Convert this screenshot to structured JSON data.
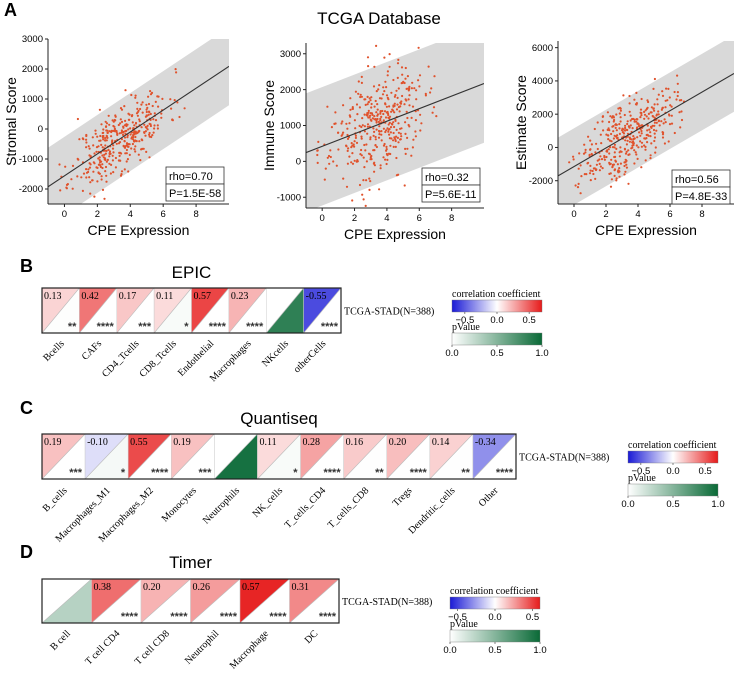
{
  "panel_letters": [
    "A",
    "B",
    "C",
    "D"
  ],
  "scatter_title": "TCGA Database",
  "chart_data": [
    {
      "type": "scatter",
      "ylabel": "Stromal Score",
      "xlabel": "CPE Expression",
      "xlim": [
        -1,
        10
      ],
      "ylim": [
        -2500,
        3000
      ],
      "xticks": [
        0,
        2,
        4,
        6,
        8
      ],
      "yticks": [
        -2000,
        -1000,
        0,
        1000,
        2000,
        3000
      ],
      "fit": {
        "intercept": -1560,
        "slope": 365
      },
      "band_halfwidth": 1300,
      "n_points": 388,
      "seed": 11,
      "x_mean": 3.4,
      "x_sd": 1.45,
      "noise_sd": 550,
      "rho": "rho=0.70",
      "p": "P=1.5E-58"
    },
    {
      "type": "scatter",
      "ylabel": "Immune Score",
      "xlabel": "CPE Expression",
      "xlim": [
        -1,
        10
      ],
      "ylim": [
        -1300,
        3300
      ],
      "xticks": [
        0,
        2,
        4,
        6,
        8
      ],
      "yticks": [
        -1000,
        0,
        1000,
        2000,
        3000
      ],
      "fit": {
        "intercept": 420,
        "slope": 175
      },
      "band_halfwidth": 1650,
      "n_points": 388,
      "seed": 23,
      "x_mean": 3.4,
      "x_sd": 1.45,
      "noise_sd": 720,
      "rho": "rho=0.32",
      "p": "P=5.6E-11"
    },
    {
      "type": "scatter",
      "ylabel": "Estimate Score",
      "xlabel": "CPE Expression",
      "xlim": [
        -1,
        10
      ],
      "ylim": [
        -3400,
        6400
      ],
      "xticks": [
        0,
        2,
        4,
        6,
        8
      ],
      "yticks": [
        -2000,
        0,
        2000,
        4000,
        6000
      ],
      "fit": {
        "intercept": -1150,
        "slope": 560
      },
      "band_halfwidth": 2300,
      "n_points": 388,
      "seed": 37,
      "x_mean": 3.4,
      "x_sd": 1.45,
      "noise_sd": 1050,
      "rho": "rho=0.56",
      "p": "P=4.8E-33"
    },
    {
      "type": "heatmap",
      "title": "EPIC",
      "row_label": "TCGA-STAD(N=388)",
      "cells": [
        {
          "name": "Bcells",
          "value": "0.13",
          "stars": "**",
          "p": 0.01
        },
        {
          "name": "CAFs",
          "value": "0.42",
          "stars": "****",
          "p": 0.0001
        },
        {
          "name": "CD4_Tcells",
          "value": "0.17",
          "stars": "***",
          "p": 0.001
        },
        {
          "name": "CD8_Tcells",
          "value": "0.11",
          "stars": "*",
          "p": 0.03
        },
        {
          "name": "Endothelial",
          "value": "0.57",
          "stars": "****",
          "p": 0.0001
        },
        {
          "name": "Macrophages",
          "value": "0.23",
          "stars": "****",
          "p": 0.0001
        },
        {
          "name": "NKcells",
          "value": "",
          "stars": "",
          "p": 0.85
        },
        {
          "name": "otherCells",
          "value": "-0.55",
          "stars": "****",
          "p": 0.0001
        }
      ],
      "legend": {
        "corr_title": "correlation coefficient",
        "corr_ticks": [
          "−0.5",
          "0.0",
          "0.5"
        ],
        "corr_range": [
          -0.7,
          0.7
        ],
        "corr_tick_values": [
          -0.5,
          0,
          0.5
        ],
        "p_title": "pValue",
        "p_ticks": [
          "0.0",
          "0.5",
          "1.0"
        ],
        "p_tick_values": [
          0,
          0.5,
          1
        ]
      }
    },
    {
      "type": "heatmap",
      "title": "Quantiseq",
      "row_label": "TCGA-STAD(N=388)",
      "cells": [
        {
          "name": "B_cells",
          "value": "0.19",
          "stars": "***",
          "p": 0.001
        },
        {
          "name": "Macrophages_M1",
          "value": "-0.10",
          "stars": "*",
          "p": 0.04
        },
        {
          "name": "Macrophages_M2",
          "value": "0.55",
          "stars": "****",
          "p": 0.0001
        },
        {
          "name": "Monocytes",
          "value": "0.19",
          "stars": "***",
          "p": 0.001
        },
        {
          "name": "Neutrophils",
          "value": "",
          "stars": "",
          "p": 0.95
        },
        {
          "name": "NK_cells",
          "value": "0.11",
          "stars": "*",
          "p": 0.03
        },
        {
          "name": "T_cells_CD4",
          "value": "0.28",
          "stars": "****",
          "p": 0.0001
        },
        {
          "name": "T_cells_CD8",
          "value": "0.16",
          "stars": "**",
          "p": 0.005
        },
        {
          "name": "Tregs",
          "value": "0.20",
          "stars": "****",
          "p": 0.0001
        },
        {
          "name": "Dendritic_cells",
          "value": "0.14",
          "stars": "**",
          "p": 0.006
        },
        {
          "name": "Other",
          "value": "-0.34",
          "stars": "****",
          "p": 0.0001
        }
      ],
      "legend": {
        "corr_title": "correlation coefficient",
        "corr_ticks": [
          "−0.5",
          "0.0",
          "0.5"
        ],
        "corr_range": [
          -0.7,
          0.7
        ],
        "corr_tick_values": [
          -0.5,
          0,
          0.5
        ],
        "p_title": "pValue",
        "p_ticks": [
          "0.0",
          "0.5",
          "1.0"
        ],
        "p_tick_values": [
          0,
          0.5,
          1
        ]
      }
    },
    {
      "type": "heatmap",
      "title": "Timer",
      "row_label": "TCGA-STAD(N=388)",
      "cells": [
        {
          "name": "B cell",
          "value": "",
          "stars": "",
          "p": 0.3
        },
        {
          "name": "T cell CD4",
          "value": "0.38",
          "stars": "****",
          "p": 0.0001
        },
        {
          "name": "T cell CD8",
          "value": "0.20",
          "stars": "****",
          "p": 0.0001
        },
        {
          "name": "Neutrophil",
          "value": "0.26",
          "stars": "****",
          "p": 0.0001
        },
        {
          "name": "Macrophage",
          "value": "0.57",
          "stars": "****",
          "p": 0.0001
        },
        {
          "name": "DC",
          "value": "0.31",
          "stars": "****",
          "p": 0.0001
        }
      ],
      "legend": {
        "corr_title": "correlation coefficient",
        "corr_ticks": [
          "−0.5",
          "0.0",
          "0.5"
        ],
        "corr_range": [
          -0.6,
          0.6
        ],
        "corr_tick_values": [
          -0.5,
          0,
          0.5
        ],
        "p_title": "pValue",
        "p_ticks": [
          "0.0",
          "0.5",
          "1.0"
        ],
        "p_tick_values": [
          0,
          0.5,
          1
        ]
      }
    }
  ]
}
